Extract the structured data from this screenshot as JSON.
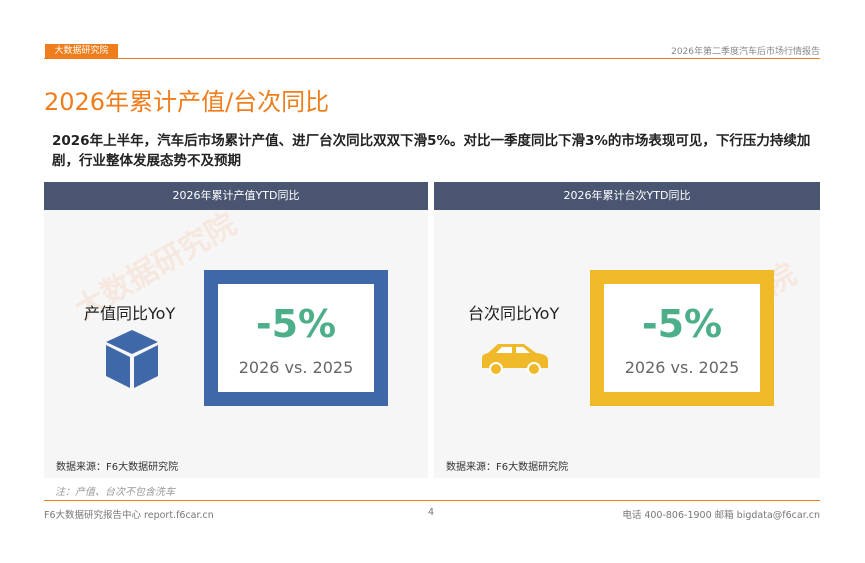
{
  "header": {
    "logo": "大数据研究院",
    "report": "2026年第二季度汽车后市场行情报告"
  },
  "title": "2026年累计产值/台次同比",
  "summary": "2026年上半年，汽车后市场累计产值、进厂台次同比双双下滑5%。对比一季度同比下滑3%的市场表现可见，下行压力持续加剧，行业整体发展态势不及预期",
  "watermark": "大数据研究院",
  "panels": [
    {
      "heading": "2026年累计产值YTD同比",
      "label": "产值同比YoY",
      "value": "-5%",
      "comparison": "2026 vs. 2025",
      "source": "数据来源：F6大数据研究院"
    },
    {
      "heading": "2026年累计台次YTD同比",
      "label": "台次同比YoY",
      "value": "-5%",
      "comparison": "2026 vs. 2025",
      "source": "数据来源：F6大数据研究院"
    }
  ],
  "note": "注：产值、台次不包含洗车",
  "footer": {
    "left": "F6大数据研究报告中心 report.f6car.cn",
    "page": "4",
    "right": "电话 400-806-1900 邮箱 bigdata@f6car.cn"
  }
}
